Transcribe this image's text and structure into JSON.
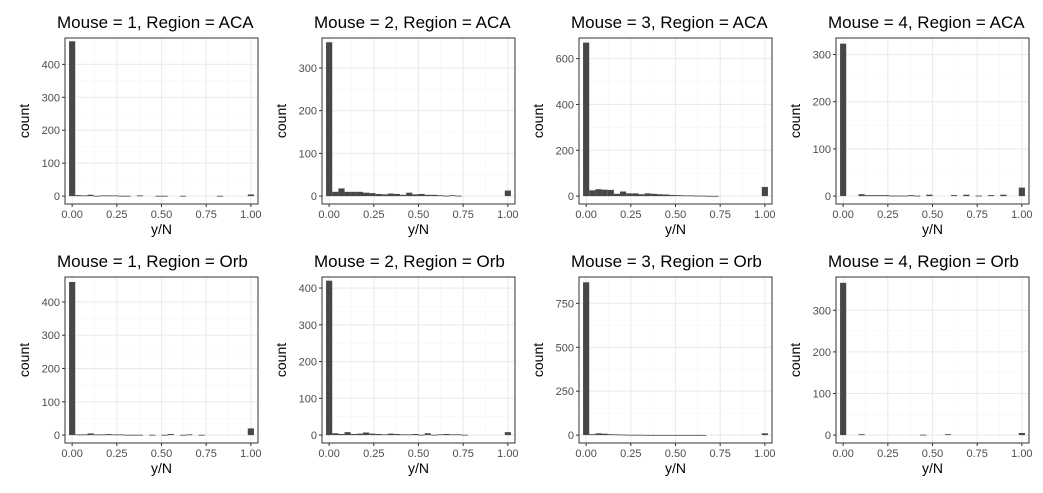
{
  "chart_data": [
    {
      "type": "bar",
      "title": "Mouse = 1, Region = ACA",
      "xlabel": "y/N",
      "ylabel": "count",
      "xlim": [
        -0.04,
        1.04
      ],
      "ylim": [
        0,
        480
      ],
      "yticks": [
        0,
        100,
        200,
        300,
        400
      ],
      "xticks": [
        0,
        0.25,
        0.5,
        0.75,
        1
      ],
      "xtick_labels": [
        "0.00",
        "0.25",
        "0.50",
        "0.75",
        "1.00"
      ],
      "bins": [
        0,
        0.0345,
        0.069,
        0.1034,
        0.1379,
        0.1724,
        0.2069,
        0.2414,
        0.2759,
        0.3103,
        0.3448,
        0.3793,
        0.4138,
        0.4483,
        0.4828,
        0.5172,
        0.5517,
        0.5862,
        0.6207,
        0.6552,
        0.6897,
        0.7241,
        0.7586,
        0.7931,
        0.8276,
        0.8621,
        0.8966,
        0.931,
        0.9655,
        1
      ],
      "values": [
        470,
        3,
        2,
        4,
        1,
        2,
        2,
        2,
        1,
        1,
        0,
        2,
        0,
        0,
        1,
        1,
        0,
        0,
        1,
        0,
        0,
        0,
        0,
        0,
        1,
        0,
        0,
        0,
        0,
        5
      ]
    },
    {
      "type": "bar",
      "title": "Mouse = 2, Region = ACA",
      "xlabel": "y/N",
      "ylabel": "count",
      "xlim": [
        -0.04,
        1.04
      ],
      "ylim": [
        0,
        370
      ],
      "yticks": [
        0,
        100,
        200,
        300
      ],
      "xticks": [
        0,
        0.25,
        0.5,
        0.75,
        1
      ],
      "xtick_labels": [
        "0.00",
        "0.25",
        "0.50",
        "0.75",
        "1.00"
      ],
      "bins": [
        0,
        0.0345,
        0.069,
        0.1034,
        0.1379,
        0.1724,
        0.2069,
        0.2414,
        0.2759,
        0.3103,
        0.3448,
        0.3793,
        0.4138,
        0.4483,
        0.4828,
        0.5172,
        0.5517,
        0.5862,
        0.6207,
        0.6552,
        0.6897,
        0.7241,
        0.7586,
        0.7931,
        0.8276,
        0.8621,
        0.8966,
        0.931,
        0.9655,
        1
      ],
      "values": [
        360,
        10,
        18,
        10,
        10,
        10,
        8,
        7,
        5,
        4,
        6,
        5,
        3,
        8,
        4,
        5,
        3,
        3,
        2,
        1,
        2,
        1,
        0,
        0,
        0,
        0,
        0,
        0,
        0,
        13
      ]
    },
    {
      "type": "bar",
      "title": "Mouse = 3, Region = ACA",
      "xlabel": "y/N",
      "ylabel": "count",
      "xlim": [
        -0.04,
        1.04
      ],
      "ylim": [
        0,
        690
      ],
      "yticks": [
        0,
        200,
        400,
        600
      ],
      "xticks": [
        0,
        0.25,
        0.5,
        0.75,
        1
      ],
      "xtick_labels": [
        "0.00",
        "0.25",
        "0.50",
        "0.75",
        "1.00"
      ],
      "bins": [
        0,
        0.0345,
        0.069,
        0.1034,
        0.1379,
        0.1724,
        0.2069,
        0.2414,
        0.2759,
        0.3103,
        0.3448,
        0.3793,
        0.4138,
        0.4483,
        0.4828,
        0.5172,
        0.5517,
        0.5862,
        0.6207,
        0.6552,
        0.6897,
        0.7241,
        0.7586,
        0.7931,
        0.8276,
        0.8621,
        0.8966,
        0.931,
        0.9655,
        1
      ],
      "values": [
        670,
        25,
        30,
        28,
        27,
        10,
        20,
        12,
        12,
        8,
        12,
        10,
        8,
        7,
        5,
        4,
        3,
        3,
        2,
        2,
        1,
        1,
        0,
        0,
        0,
        0,
        0,
        0,
        0,
        40
      ]
    },
    {
      "type": "bar",
      "title": "Mouse = 4, Region = ACA",
      "xlabel": "y/N",
      "ylabel": "count",
      "xlim": [
        -0.04,
        1.04
      ],
      "ylim": [
        0,
        335
      ],
      "yticks": [
        0,
        100,
        200,
        300
      ],
      "xticks": [
        0,
        0.25,
        0.5,
        0.75,
        1
      ],
      "xtick_labels": [
        "0.00",
        "0.25",
        "0.50",
        "0.75",
        "1.00"
      ],
      "bins": [
        0,
        0.0345,
        0.069,
        0.1034,
        0.1379,
        0.1724,
        0.2069,
        0.2414,
        0.2759,
        0.3103,
        0.3448,
        0.3793,
        0.4138,
        0.4483,
        0.4828,
        0.5172,
        0.5517,
        0.5862,
        0.6207,
        0.6552,
        0.6897,
        0.7241,
        0.7586,
        0.7931,
        0.8276,
        0.8621,
        0.8966,
        0.931,
        0.9655,
        1
      ],
      "values": [
        323,
        0,
        0,
        4,
        2,
        2,
        2,
        2,
        1,
        1,
        1,
        2,
        1,
        0,
        3,
        0,
        0,
        0,
        2,
        0,
        3,
        0,
        1,
        0,
        2,
        0,
        3,
        0,
        0,
        18
      ]
    },
    {
      "type": "bar",
      "title": "Mouse = 1, Region = Orb",
      "xlabel": "y/N",
      "ylabel": "count",
      "xlim": [
        -0.04,
        1.04
      ],
      "ylim": [
        0,
        475
      ],
      "yticks": [
        0,
        100,
        200,
        300,
        400
      ],
      "xticks": [
        0,
        0.25,
        0.5,
        0.75,
        1
      ],
      "xtick_labels": [
        "0.00",
        "0.25",
        "0.50",
        "0.75",
        "1.00"
      ],
      "bins": [
        0,
        0.0345,
        0.069,
        0.1034,
        0.1379,
        0.1724,
        0.2069,
        0.2414,
        0.2759,
        0.3103,
        0.3448,
        0.3793,
        0.4138,
        0.4483,
        0.4828,
        0.5172,
        0.5517,
        0.5862,
        0.6207,
        0.6552,
        0.6897,
        0.7241,
        0.7586,
        0.7931,
        0.8276,
        0.8621,
        0.8966,
        0.931,
        0.9655,
        1
      ],
      "values": [
        460,
        2,
        2,
        5,
        2,
        2,
        3,
        2,
        2,
        1,
        1,
        1,
        0,
        1,
        0,
        1,
        3,
        0,
        1,
        2,
        0,
        1,
        0,
        0,
        0,
        0,
        0,
        0,
        0,
        20
      ]
    },
    {
      "type": "bar",
      "title": "Mouse = 2, Region = Orb",
      "xlabel": "y/N",
      "ylabel": "count",
      "xlim": [
        -0.04,
        1.04
      ],
      "ylim": [
        0,
        430
      ],
      "yticks": [
        0,
        100,
        200,
        300,
        400
      ],
      "xticks": [
        0,
        0.25,
        0.5,
        0.75,
        1
      ],
      "xtick_labels": [
        "0.00",
        "0.25",
        "0.50",
        "0.75",
        "1.00"
      ],
      "bins": [
        0,
        0.0345,
        0.069,
        0.1034,
        0.1379,
        0.1724,
        0.2069,
        0.2414,
        0.2759,
        0.3103,
        0.3448,
        0.3793,
        0.4138,
        0.4483,
        0.4828,
        0.5172,
        0.5517,
        0.5862,
        0.6207,
        0.6552,
        0.6897,
        0.7241,
        0.7586,
        0.7931,
        0.8276,
        0.8621,
        0.8966,
        0.931,
        0.9655,
        1
      ],
      "values": [
        420,
        5,
        3,
        8,
        3,
        4,
        7,
        4,
        3,
        2,
        4,
        3,
        2,
        2,
        3,
        1,
        5,
        1,
        2,
        3,
        2,
        2,
        1,
        0,
        0,
        0,
        0,
        0,
        0,
        8
      ]
    },
    {
      "type": "bar",
      "title": "Mouse = 3, Region = Orb",
      "xlabel": "y/N",
      "ylabel": "count",
      "xlim": [
        -0.04,
        1.04
      ],
      "ylim": [
        0,
        900
      ],
      "yticks": [
        0,
        250,
        500,
        750
      ],
      "xticks": [
        0,
        0.25,
        0.5,
        0.75,
        1
      ],
      "xtick_labels": [
        "0.00",
        "0.25",
        "0.50",
        "0.75",
        "1.00"
      ],
      "bins": [
        0,
        0.0345,
        0.069,
        0.1034,
        0.1379,
        0.1724,
        0.2069,
        0.2414,
        0.2759,
        0.3103,
        0.3448,
        0.3793,
        0.4138,
        0.4483,
        0.4828,
        0.5172,
        0.5517,
        0.5862,
        0.6207,
        0.6552,
        0.6897,
        0.7241,
        0.7586,
        0.7931,
        0.8276,
        0.8621,
        0.8966,
        0.931,
        0.9655,
        1
      ],
      "values": [
        870,
        5,
        10,
        8,
        5,
        4,
        3,
        2,
        2,
        2,
        1,
        1,
        1,
        1,
        1,
        1,
        1,
        1,
        1,
        1,
        0,
        0,
        0,
        0,
        0,
        0,
        0,
        0,
        0,
        10
      ]
    },
    {
      "type": "bar",
      "title": "Mouse = 4, Region = Orb",
      "xlabel": "y/N",
      "ylabel": "count",
      "xlim": [
        -0.04,
        1.04
      ],
      "ylim": [
        0,
        380
      ],
      "yticks": [
        0,
        100,
        200,
        300
      ],
      "xticks": [
        0,
        0.25,
        0.5,
        0.75,
        1
      ],
      "xtick_labels": [
        "0.00",
        "0.25",
        "0.50",
        "0.75",
        "1.00"
      ],
      "bins": [
        0,
        0.0345,
        0.069,
        0.1034,
        0.1379,
        0.1724,
        0.2069,
        0.2414,
        0.2759,
        0.3103,
        0.3448,
        0.3793,
        0.4138,
        0.4483,
        0.4828,
        0.5172,
        0.5517,
        0.5862,
        0.6207,
        0.6552,
        0.6897,
        0.7241,
        0.7586,
        0.7931,
        0.8276,
        0.8621,
        0.8966,
        0.931,
        0.9655,
        1
      ],
      "values": [
        366,
        0,
        0,
        2,
        0,
        0,
        0,
        0,
        0,
        0,
        0,
        0,
        0,
        1,
        0,
        0,
        0,
        2,
        0,
        0,
        0,
        0,
        0,
        0,
        0,
        0,
        0,
        0,
        0,
        5
      ]
    }
  ],
  "style": {
    "bar_color": "#474747",
    "panel_border": "#333333",
    "grid_major": "#ebebeb",
    "grid_minor": "#f5f5f5",
    "background": "#ffffff"
  }
}
